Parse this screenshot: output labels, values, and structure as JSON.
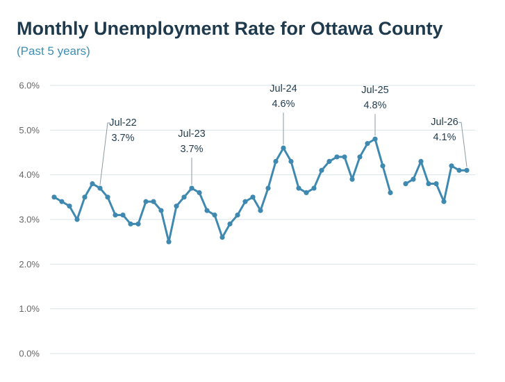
{
  "header": {
    "title": "Monthly Unemployment Rate for Ottawa County",
    "subtitle": "(Past 5 years)"
  },
  "colors": {
    "line": "#3f89b1",
    "title": "#1f3a4d",
    "subtitle": "#3f8fb5",
    "grid": "#d9e4e8"
  },
  "chart_data": {
    "type": "line",
    "title": "Monthly Unemployment Rate for Ottawa County",
    "subtitle": "(Past 5 years)",
    "y_tick_labels": [
      "0.0%",
      "1.0%",
      "2.0%",
      "3.0%",
      "4.0%",
      "5.0%",
      "6.0%"
    ],
    "ylim": [
      0,
      6
    ],
    "grid": true,
    "legend": "none",
    "x_tick_labels_shown": false,
    "series": [
      {
        "values": [
          3.5,
          3.4,
          3.3,
          3.0,
          3.5,
          3.8,
          3.7,
          3.5,
          3.1,
          3.1,
          2.9,
          2.9,
          3.4,
          3.4,
          3.2,
          2.5,
          3.3,
          3.5,
          3.7,
          3.6,
          3.2,
          3.1,
          2.6,
          2.9,
          3.1,
          3.4,
          3.5,
          3.2,
          3.7,
          4.3,
          4.6,
          4.3,
          3.7,
          3.6,
          3.7,
          4.1,
          4.3,
          4.4,
          4.4,
          3.9,
          4.4,
          4.7,
          4.8,
          4.2,
          3.6,
          null,
          3.8,
          3.9,
          4.3,
          3.8,
          3.8,
          3.4,
          4.2,
          4.1,
          4.1
        ]
      }
    ],
    "annotations": [
      {
        "index": 6,
        "month": "Jul-22",
        "value": "3.7%"
      },
      {
        "index": 18,
        "month": "Jul-23",
        "value": "3.7%"
      },
      {
        "index": 30,
        "month": "Jul-24",
        "value": "4.6%"
      },
      {
        "index": 42,
        "month": "Jul-25",
        "value": "4.8%"
      },
      {
        "index": 54,
        "month": "Jul-26",
        "value": "4.1%"
      }
    ]
  }
}
